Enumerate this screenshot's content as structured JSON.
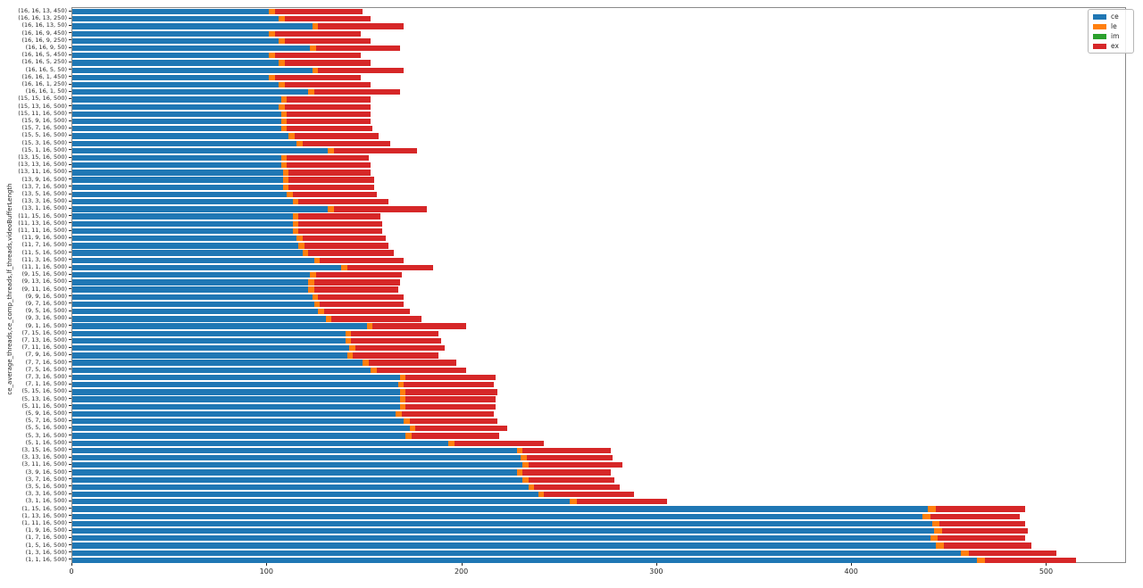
{
  "figure": {
    "background": "#ffffff",
    "spine_color": "#8a8a8a"
  },
  "chart_data": {
    "type": "bar",
    "orientation": "horizontal",
    "stacked": true,
    "title": "",
    "xlabel": "",
    "ylabel": "ce_average_threads,ce_comp_threads,lf_threads,videoBufferLength",
    "xlim": [
      0,
      541
    ],
    "x_ticks": [
      0,
      100,
      200,
      300,
      400,
      500
    ],
    "grid": false,
    "legend_position": "upper-right-outside",
    "categories": [
      "(16, 16, 13, 450)",
      "(16, 16, 13, 250)",
      "(16, 16, 13, 50)",
      "(16, 16, 9, 450)",
      "(16, 16, 9, 250)",
      "(16, 16, 9, 50)",
      "(16, 16, 5, 450)",
      "(16, 16, 5, 250)",
      "(16, 16, 5, 50)",
      "(16, 16, 1, 450)",
      "(16, 16, 1, 250)",
      "(16, 16, 1, 50)",
      "(15, 15, 16, 500)",
      "(15, 13, 16, 500)",
      "(15, 11, 16, 500)",
      "(15, 9, 16, 500)",
      "(15, 7, 16, 500)",
      "(15, 5, 16, 500)",
      "(15, 3, 16, 500)",
      "(15, 1, 16, 500)",
      "(13, 15, 16, 500)",
      "(13, 13, 16, 500)",
      "(13, 11, 16, 500)",
      "(13, 9, 16, 500)",
      "(13, 7, 16, 500)",
      "(13, 5, 16, 500)",
      "(13, 3, 16, 500)",
      "(13, 1, 16, 500)",
      "(11, 15, 16, 500)",
      "(11, 13, 16, 500)",
      "(11, 11, 16, 500)",
      "(11, 9, 16, 500)",
      "(11, 7, 16, 500)",
      "(11, 5, 16, 500)",
      "(11, 3, 16, 500)",
      "(11, 1, 16, 500)",
      "(9, 15, 16, 500)",
      "(9, 13, 16, 500)",
      "(9, 11, 16, 500)",
      "(9, 9, 16, 500)",
      "(9, 7, 16, 500)",
      "(9, 5, 16, 500)",
      "(9, 3, 16, 500)",
      "(9, 1, 16, 500)",
      "(7, 15, 16, 500)",
      "(7, 13, 16, 500)",
      "(7, 11, 16, 500)",
      "(7, 9, 16, 500)",
      "(7, 7, 16, 500)",
      "(7, 5, 16, 500)",
      "(7, 3, 16, 500)",
      "(7, 1, 16, 500)",
      "(5, 15, 16, 500)",
      "(5, 13, 16, 500)",
      "(5, 11, 16, 500)",
      "(5, 9, 16, 500)",
      "(5, 7, 16, 500)",
      "(5, 5, 16, 500)",
      "(5, 3, 16, 500)",
      "(5, 1, 16, 500)",
      "(3, 15, 16, 500)",
      "(3, 13, 16, 500)",
      "(3, 11, 16, 500)",
      "(3, 9, 16, 500)",
      "(3, 7, 16, 500)",
      "(3, 5, 16, 500)",
      "(3, 3, 16, 500)",
      "(3, 1, 16, 500)",
      "(1, 15, 16, 500)",
      "(1, 13, 16, 500)",
      "(1, 11, 16, 500)",
      "(1, 9, 16, 500)",
      "(1, 7, 16, 500)",
      "(1, 5, 16, 500)",
      "(1, 3, 16, 500)",
      "(1, 1, 16, 500)"
    ],
    "series": [
      {
        "name": "ce",
        "color": "#1f77b4",
        "values": [
          101,
          106,
          123,
          101,
          106,
          122,
          101,
          106,
          123,
          101,
          106,
          121,
          107,
          106,
          107,
          107,
          107,
          111,
          115,
          131,
          107,
          107,
          108,
          108,
          108,
          110,
          113,
          131,
          113,
          113,
          113,
          115,
          116,
          118,
          124,
          138,
          122,
          121,
          121,
          123,
          124,
          126,
          130,
          151,
          140,
          140,
          142,
          141,
          149,
          153,
          168,
          167,
          168,
          168,
          168,
          166,
          170,
          173,
          171,
          193,
          228,
          230,
          231,
          228,
          231,
          234,
          239,
          255,
          439,
          436,
          441,
          442,
          440,
          443,
          456,
          464
        ]
      },
      {
        "name": "le",
        "color": "#ff7f0e",
        "values": [
          3,
          3,
          3,
          3,
          3,
          3,
          3,
          3,
          3,
          3,
          3,
          3,
          3,
          3,
          3,
          3,
          3,
          3,
          3,
          3,
          3,
          3,
          3,
          3,
          3,
          3,
          3,
          3,
          3,
          3,
          3,
          3,
          3,
          3,
          3,
          3,
          3,
          3,
          3,
          3,
          3,
          3,
          3,
          3,
          3,
          3,
          3,
          3,
          3,
          3,
          3,
          3,
          3,
          3,
          3,
          3,
          3,
          3,
          3,
          3,
          3,
          3,
          3,
          3,
          3,
          3,
          3,
          4,
          4,
          4,
          4,
          4,
          4,
          4,
          4,
          4
        ]
      },
      {
        "name": "im",
        "color": "#2ca02c",
        "values": [
          0,
          0,
          0,
          0,
          0,
          0,
          0,
          0,
          0,
          0,
          0,
          0,
          0,
          0,
          0,
          0,
          0,
          0,
          0,
          0,
          0,
          0,
          0,
          0,
          0,
          0,
          0,
          0,
          0,
          0,
          0,
          0,
          0,
          0,
          0,
          0,
          0,
          0,
          0,
          0,
          0,
          0,
          0,
          0,
          0,
          0,
          0,
          0,
          0,
          0,
          0,
          0,
          0,
          0,
          0,
          0,
          0,
          0,
          0,
          0,
          0,
          0,
          0,
          0,
          0,
          0,
          0,
          0,
          0,
          0,
          0,
          0,
          0,
          0,
          0,
          0
        ]
      },
      {
        "name": "ex",
        "color": "#d62728",
        "values": [
          45,
          44,
          44,
          44,
          44,
          43,
          44,
          44,
          44,
          44,
          44,
          44,
          43,
          44,
          43,
          43,
          44,
          43,
          45,
          43,
          42,
          43,
          42,
          44,
          44,
          43,
          46,
          48,
          42,
          43,
          43,
          43,
          43,
          44,
          43,
          44,
          44,
          44,
          43,
          44,
          43,
          44,
          46,
          48,
          45,
          46,
          46,
          44,
          45,
          46,
          46,
          46,
          47,
          46,
          46,
          47,
          45,
          47,
          45,
          46,
          45,
          44,
          48,
          45,
          44,
          44,
          46,
          46,
          46,
          46,
          44,
          44,
          45,
          45,
          45,
          47
        ]
      }
    ]
  }
}
